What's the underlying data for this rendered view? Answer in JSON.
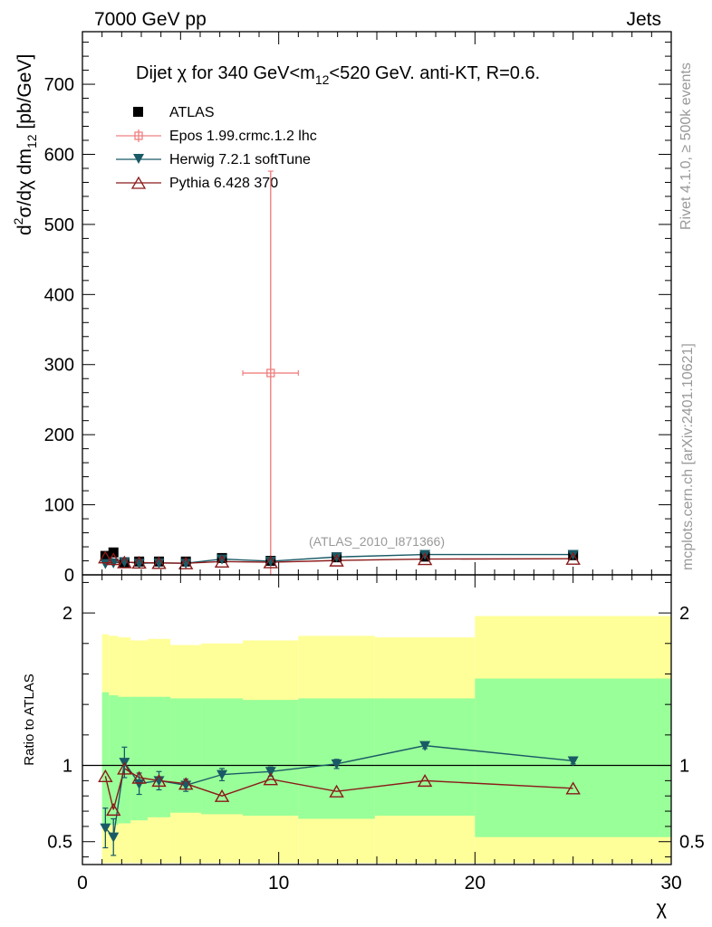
{
  "header": {
    "left": "7000 GeV pp",
    "right": "Jets"
  },
  "side_labels": {
    "rivet": "Rivet 4.1.0, ≥ 500k events",
    "mcplots": "mcplots.cern.ch [arXiv:2401.10621]"
  },
  "title_parts": {
    "a": "Dijet ",
    "chi": "χ",
    "b": " for 340 GeV<m",
    "sub": "12",
    "c": "<520 GeV.  anti-KT, R=0.6."
  },
  "ylabel_top_parts": {
    "d": "d",
    "sup": "2",
    "mid": "σ/dχ dm",
    "sub": "12",
    "unit": " [pb/GeV]"
  },
  "watermark": "(ATLAS_2010_I871366)",
  "chart_data": [
    {
      "id": "main",
      "type": "scatter",
      "xlim": [
        0,
        30
      ],
      "ylim": [
        0,
        775
      ],
      "yticks": [
        0,
        100,
        200,
        300,
        400,
        500,
        600,
        700
      ],
      "ytick_labels": [
        "0",
        "100",
        "200",
        "300",
        "400",
        "500",
        "600",
        "700"
      ],
      "bins": [
        1.0,
        1.35,
        1.82,
        2.46,
        3.32,
        4.48,
        6.05,
        8.17,
        11.0,
        14.9,
        20.0,
        30.0
      ],
      "x": [
        1.17,
        1.58,
        2.14,
        2.89,
        3.9,
        5.27,
        7.11,
        9.59,
        12.95,
        17.45,
        25.0
      ],
      "series": [
        {
          "name": "ATLAS",
          "legend": "ATLAS",
          "color": "#000000",
          "marker": "square",
          "values": [
            27,
            32,
            18,
            19,
            19,
            19,
            24,
            20,
            25,
            26,
            28
          ]
        },
        {
          "name": "Epos",
          "legend": "Epos 1.99.crmc.1.2 lhc",
          "color": "#f08080",
          "marker": "open-cross",
          "points": [
            {
              "x": 9.59,
              "y": 288,
              "yerr_lo": 288,
              "yerr_hi": 288,
              "xlo": 8.17,
              "xhi": 11.0
            }
          ]
        },
        {
          "name": "Herwig",
          "legend": "Herwig 7.2.1 softTune",
          "color": "#1a5a66",
          "marker": "triangle-down",
          "values": [
            16,
            17,
            18.5,
            16.5,
            17,
            16.5,
            22.5,
            19.5,
            25.5,
            29,
            29
          ]
        },
        {
          "name": "Pythia",
          "legend": "Pythia 6.428 370",
          "color": "#8b1a1a",
          "marker": "open-triangle-up",
          "values": [
            25,
            22.5,
            18,
            17.5,
            17,
            16.5,
            19,
            18,
            20.5,
            22.5,
            23
          ]
        }
      ]
    },
    {
      "id": "ratio",
      "type": "scatter",
      "ylabel": "Ratio to ATLAS",
      "xlabel": "χ",
      "xlim": [
        0,
        30
      ],
      "ylim": [
        0.35,
        2.25
      ],
      "yticks": [
        0.5,
        1,
        2
      ],
      "ytick_labels": [
        "0.5",
        "1",
        "2"
      ],
      "xticks": [
        0,
        10,
        20,
        30
      ],
      "xtick_labels": [
        "0",
        "10",
        "20",
        "30"
      ],
      "bins": [
        1.0,
        1.35,
        1.82,
        2.46,
        3.32,
        4.48,
        6.05,
        8.17,
        11.0,
        14.9,
        20.0,
        30.0
      ],
      "band_outer": [
        [
          0.36,
          1.86
        ],
        [
          0.36,
          1.85
        ],
        [
          0.36,
          1.84
        ],
        [
          0.36,
          1.82
        ],
        [
          0.36,
          1.83
        ],
        [
          0.36,
          1.79
        ],
        [
          0.36,
          1.8
        ],
        [
          0.36,
          1.82
        ],
        [
          0.36,
          1.85
        ],
        [
          0.36,
          1.84
        ],
        [
          0.36,
          1.98
        ]
      ],
      "band_inner": [
        [
          0.59,
          1.48
        ],
        [
          0.61,
          1.46
        ],
        [
          0.62,
          1.45
        ],
        [
          0.64,
          1.45
        ],
        [
          0.66,
          1.45
        ],
        [
          0.69,
          1.44
        ],
        [
          0.68,
          1.44
        ],
        [
          0.67,
          1.43
        ],
        [
          0.65,
          1.44
        ],
        [
          0.67,
          1.44
        ],
        [
          0.53,
          1.57
        ]
      ],
      "reference": 1,
      "x": [
        1.17,
        1.58,
        2.14,
        2.89,
        3.9,
        5.27,
        7.11,
        9.59,
        12.95,
        17.45,
        25.0
      ],
      "series": [
        {
          "name": "Herwig",
          "color": "#1a5a66",
          "marker": "triangle-down",
          "values": [
            0.59,
            0.53,
            1.02,
            0.88,
            0.9,
            0.87,
            0.94,
            0.96,
            1.01,
            1.13,
            1.03
          ],
          "err": [
            0.13,
            0.12,
            0.1,
            0.07,
            0.06,
            0.04,
            0.04,
            0.03,
            0.03,
            0.02,
            0.02
          ]
        },
        {
          "name": "Pythia",
          "color": "#8b1a1a",
          "marker": "open-triangle-up",
          "values": [
            0.93,
            0.71,
            0.98,
            0.92,
            0.9,
            0.88,
            0.8,
            0.91,
            0.83,
            0.9,
            0.85
          ]
        }
      ]
    }
  ]
}
